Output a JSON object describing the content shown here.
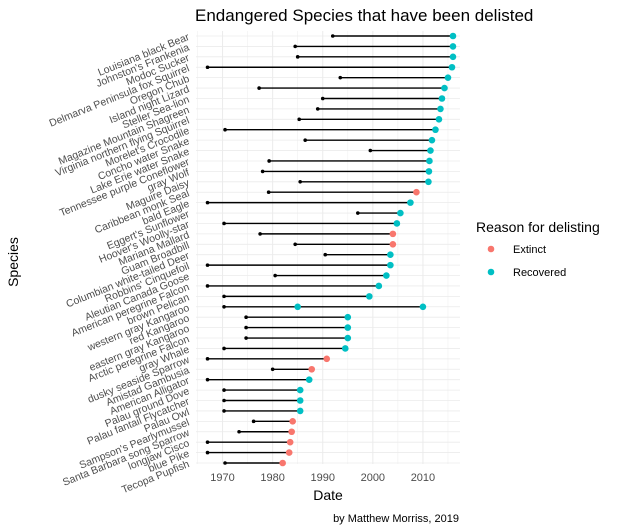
{
  "chart_data": {
    "type": "dumbbell",
    "title": "Endangered Species that have been delisted",
    "xlabel": "Date",
    "ylabel": "Species",
    "caption": "by Matthew Morriss, 2019",
    "xlim": [
      1964.7,
      2017.4
    ],
    "xticks": [
      1970,
      1980,
      1990,
      2000,
      2010
    ],
    "grid": true,
    "legend": {
      "title": "Reason for delisting",
      "position": "right",
      "entries": [
        {
          "label": "Extinct",
          "color": "#F8766D"
        },
        {
          "label": "Recovered",
          "color": "#00BFC4"
        }
      ]
    },
    "species": [
      {
        "label": "Louisiana black  Bear",
        "start": 1992,
        "end": 2016,
        "status": "Recovered"
      },
      {
        "label": "Johnston's  Frankenia",
        "start": 1984.5,
        "end": 2016,
        "status": "Recovered"
      },
      {
        "label": "Modoc  Sucker",
        "start": 1985,
        "end": 2016,
        "status": "Recovered"
      },
      {
        "label": "Delmarva Peninsula fox  Squirrel",
        "start": 1967,
        "end": 2015.8,
        "status": "Recovered"
      },
      {
        "label": "Oregon  Chub",
        "start": 1993.5,
        "end": 2015,
        "status": "Recovered"
      },
      {
        "label": "Island night  Lizard",
        "start": 1977.3,
        "end": 2014.3,
        "status": "Recovered"
      },
      {
        "label": "Steller  Sea-lion",
        "start": 1990,
        "end": 2013.8,
        "status": "Recovered"
      },
      {
        "label": "Magazine Mountain  Shagreen",
        "start": 1989,
        "end": 2013.5,
        "status": "Recovered"
      },
      {
        "label": "Virginia northern flying  Squirrel",
        "start": 1985.3,
        "end": 2013.2,
        "status": "Recovered"
      },
      {
        "label": "Morelet's  Crocodile",
        "start": 1970.5,
        "end": 2012.5,
        "status": "Recovered"
      },
      {
        "label": "Concho water  Snake",
        "start": 1986.5,
        "end": 2011.8,
        "status": "Recovered"
      },
      {
        "label": "Lake Erie water  Snake",
        "start": 1999.5,
        "end": 2011.5,
        "status": "Recovered"
      },
      {
        "label": "Tennessee purple  Coneflower",
        "start": 1979.3,
        "end": 2011.3,
        "status": "Recovered"
      },
      {
        "label": "gray  Wolf",
        "start": 1978,
        "end": 2011.2,
        "status": "Recovered"
      },
      {
        "label": "Maguire  Daisy",
        "start": 1985.5,
        "end": 2011.1,
        "status": "Recovered"
      },
      {
        "label": "Caribbean monk  Seal",
        "start": 1979.2,
        "end": 2008.7,
        "status": "Extinct"
      },
      {
        "label": "bald  Eagle",
        "start": 1967,
        "end": 2007.5,
        "status": "Recovered"
      },
      {
        "label": "Eggert's  Sunflower",
        "start": 1997,
        "end": 2005.5,
        "status": "Recovered"
      },
      {
        "label": "Hoover's  Woolly-star",
        "start": 1970.3,
        "end": 2004.8,
        "status": "Recovered"
      },
      {
        "label": "Mariana  Mallard",
        "start": 1977.5,
        "end": 2004,
        "status": "Extinct"
      },
      {
        "label": "Guam  Broadbill",
        "start": 1984.5,
        "end": 2004,
        "status": "Extinct"
      },
      {
        "label": "Columbian white-tailed  Deer",
        "start": 1990.5,
        "end": 2003.5,
        "status": "Recovered"
      },
      {
        "label": "Robbins'  Cinquefoil",
        "start": 1967,
        "end": 2003.5,
        "status": "Recovered"
      },
      {
        "label": "Aleutian Canada  Goose",
        "start": 1980.5,
        "end": 2002.7,
        "status": "Recovered"
      },
      {
        "label": "American peregrine  Falcon",
        "start": 1967,
        "end": 2001.2,
        "status": "Recovered"
      },
      {
        "label": "brown  Pelican",
        "start": 1970.3,
        "end": 1999.3,
        "status": "Recovered"
      },
      {
        "label": "western gray  Kangaroo",
        "start": 1970.3,
        "end": 2010,
        "mid": 1985,
        "status": "Recovered"
      },
      {
        "label": "red  Kangaroo",
        "start": 1974.7,
        "end": 1995,
        "status": "Recovered"
      },
      {
        "label": "eastern gray  Kangaroo",
        "start": 1974.7,
        "end": 1995,
        "status": "Recovered"
      },
      {
        "label": "Arctic peregrine  Falcon",
        "start": 1974.7,
        "end": 1995,
        "status": "Recovered"
      },
      {
        "label": "gray  Whale",
        "start": 1970.3,
        "end": 1994.5,
        "status": "Recovered"
      },
      {
        "label": "dusky seaside  Sparrow",
        "start": 1967,
        "end": 1990.8,
        "status": "Extinct"
      },
      {
        "label": "Amistad  Gambusia",
        "start": 1980,
        "end": 1987.8,
        "status": "Extinct"
      },
      {
        "label": "American  Alligator",
        "start": 1967,
        "end": 1987.3,
        "status": "Recovered"
      },
      {
        "label": "Palau ground  Dove",
        "start": 1970.3,
        "end": 1985.5,
        "status": "Recovered"
      },
      {
        "label": "Palau fantail  Flycatcher",
        "start": 1970.3,
        "end": 1985.5,
        "status": "Recovered"
      },
      {
        "label": "Palau  Owl",
        "start": 1970.3,
        "end": 1985.5,
        "status": "Recovered"
      },
      {
        "label": "Sampson's  Pearlymussel",
        "start": 1976.2,
        "end": 1984,
        "status": "Extinct"
      },
      {
        "label": "Santa Barbara song  Sparrow",
        "start": 1973.3,
        "end": 1983.8,
        "status": "Extinct"
      },
      {
        "label": "longjaw  Cisco",
        "start": 1967,
        "end": 1983.5,
        "status": "Extinct"
      },
      {
        "label": "blue  Pike",
        "start": 1967,
        "end": 1983.3,
        "status": "Extinct"
      },
      {
        "label": "Tecopa  Pupfish",
        "start": 1970.5,
        "end": 1982,
        "status": "Extinct"
      }
    ]
  }
}
